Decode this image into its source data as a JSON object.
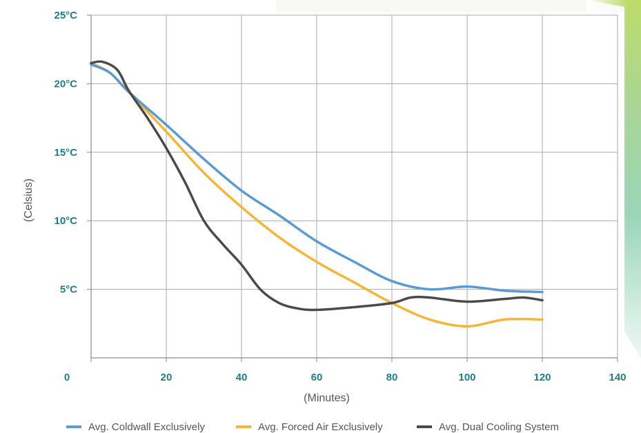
{
  "chart_data": {
    "type": "line",
    "title": "",
    "xlabel": "(Minutes)",
    "ylabel": "(Celsius)",
    "xlim": [
      0,
      140
    ],
    "ylim": [
      0,
      25
    ],
    "x_ticks": [
      "0",
      "20",
      "40",
      "60",
      "80",
      "100",
      "120",
      "140"
    ],
    "y_ticks": [
      "5°C",
      "10°C",
      "15°C",
      "20°C",
      "25°C"
    ],
    "grid": true,
    "legend_position": "bottom",
    "series": [
      {
        "name": "Avg. Coldwall Exclusively",
        "color": "#5b9bd5",
        "x": [
          0,
          5,
          10,
          20,
          30,
          40,
          50,
          60,
          70,
          80,
          90,
          100,
          110,
          120
        ],
        "y": [
          21.4,
          20.8,
          19.4,
          17.0,
          14.5,
          12.2,
          10.4,
          8.5,
          7.0,
          5.6,
          5.0,
          5.2,
          4.9,
          4.8
        ]
      },
      {
        "name": "Avg. Forced Air Exclusively",
        "color": "#f7b538",
        "x": [
          0,
          5,
          10,
          20,
          30,
          40,
          50,
          60,
          70,
          80,
          90,
          100,
          110,
          120
        ],
        "y": [
          21.5,
          20.8,
          19.4,
          16.5,
          13.5,
          11.0,
          8.8,
          7.0,
          5.5,
          4.0,
          2.8,
          2.3,
          2.8,
          2.8
        ]
      },
      {
        "name": "Avg. Dual Cooling System",
        "color": "#4a4a4a",
        "x": [
          0,
          3,
          7,
          10,
          15,
          20,
          25,
          30,
          35,
          40,
          45,
          50,
          55,
          60,
          70,
          80,
          85,
          90,
          100,
          110,
          115,
          120
        ],
        "y": [
          21.5,
          21.6,
          21.0,
          19.5,
          17.5,
          15.3,
          12.8,
          10.0,
          8.3,
          6.8,
          5.0,
          4.0,
          3.6,
          3.5,
          3.7,
          4.0,
          4.4,
          4.4,
          4.1,
          4.3,
          4.4,
          4.2
        ]
      }
    ]
  }
}
